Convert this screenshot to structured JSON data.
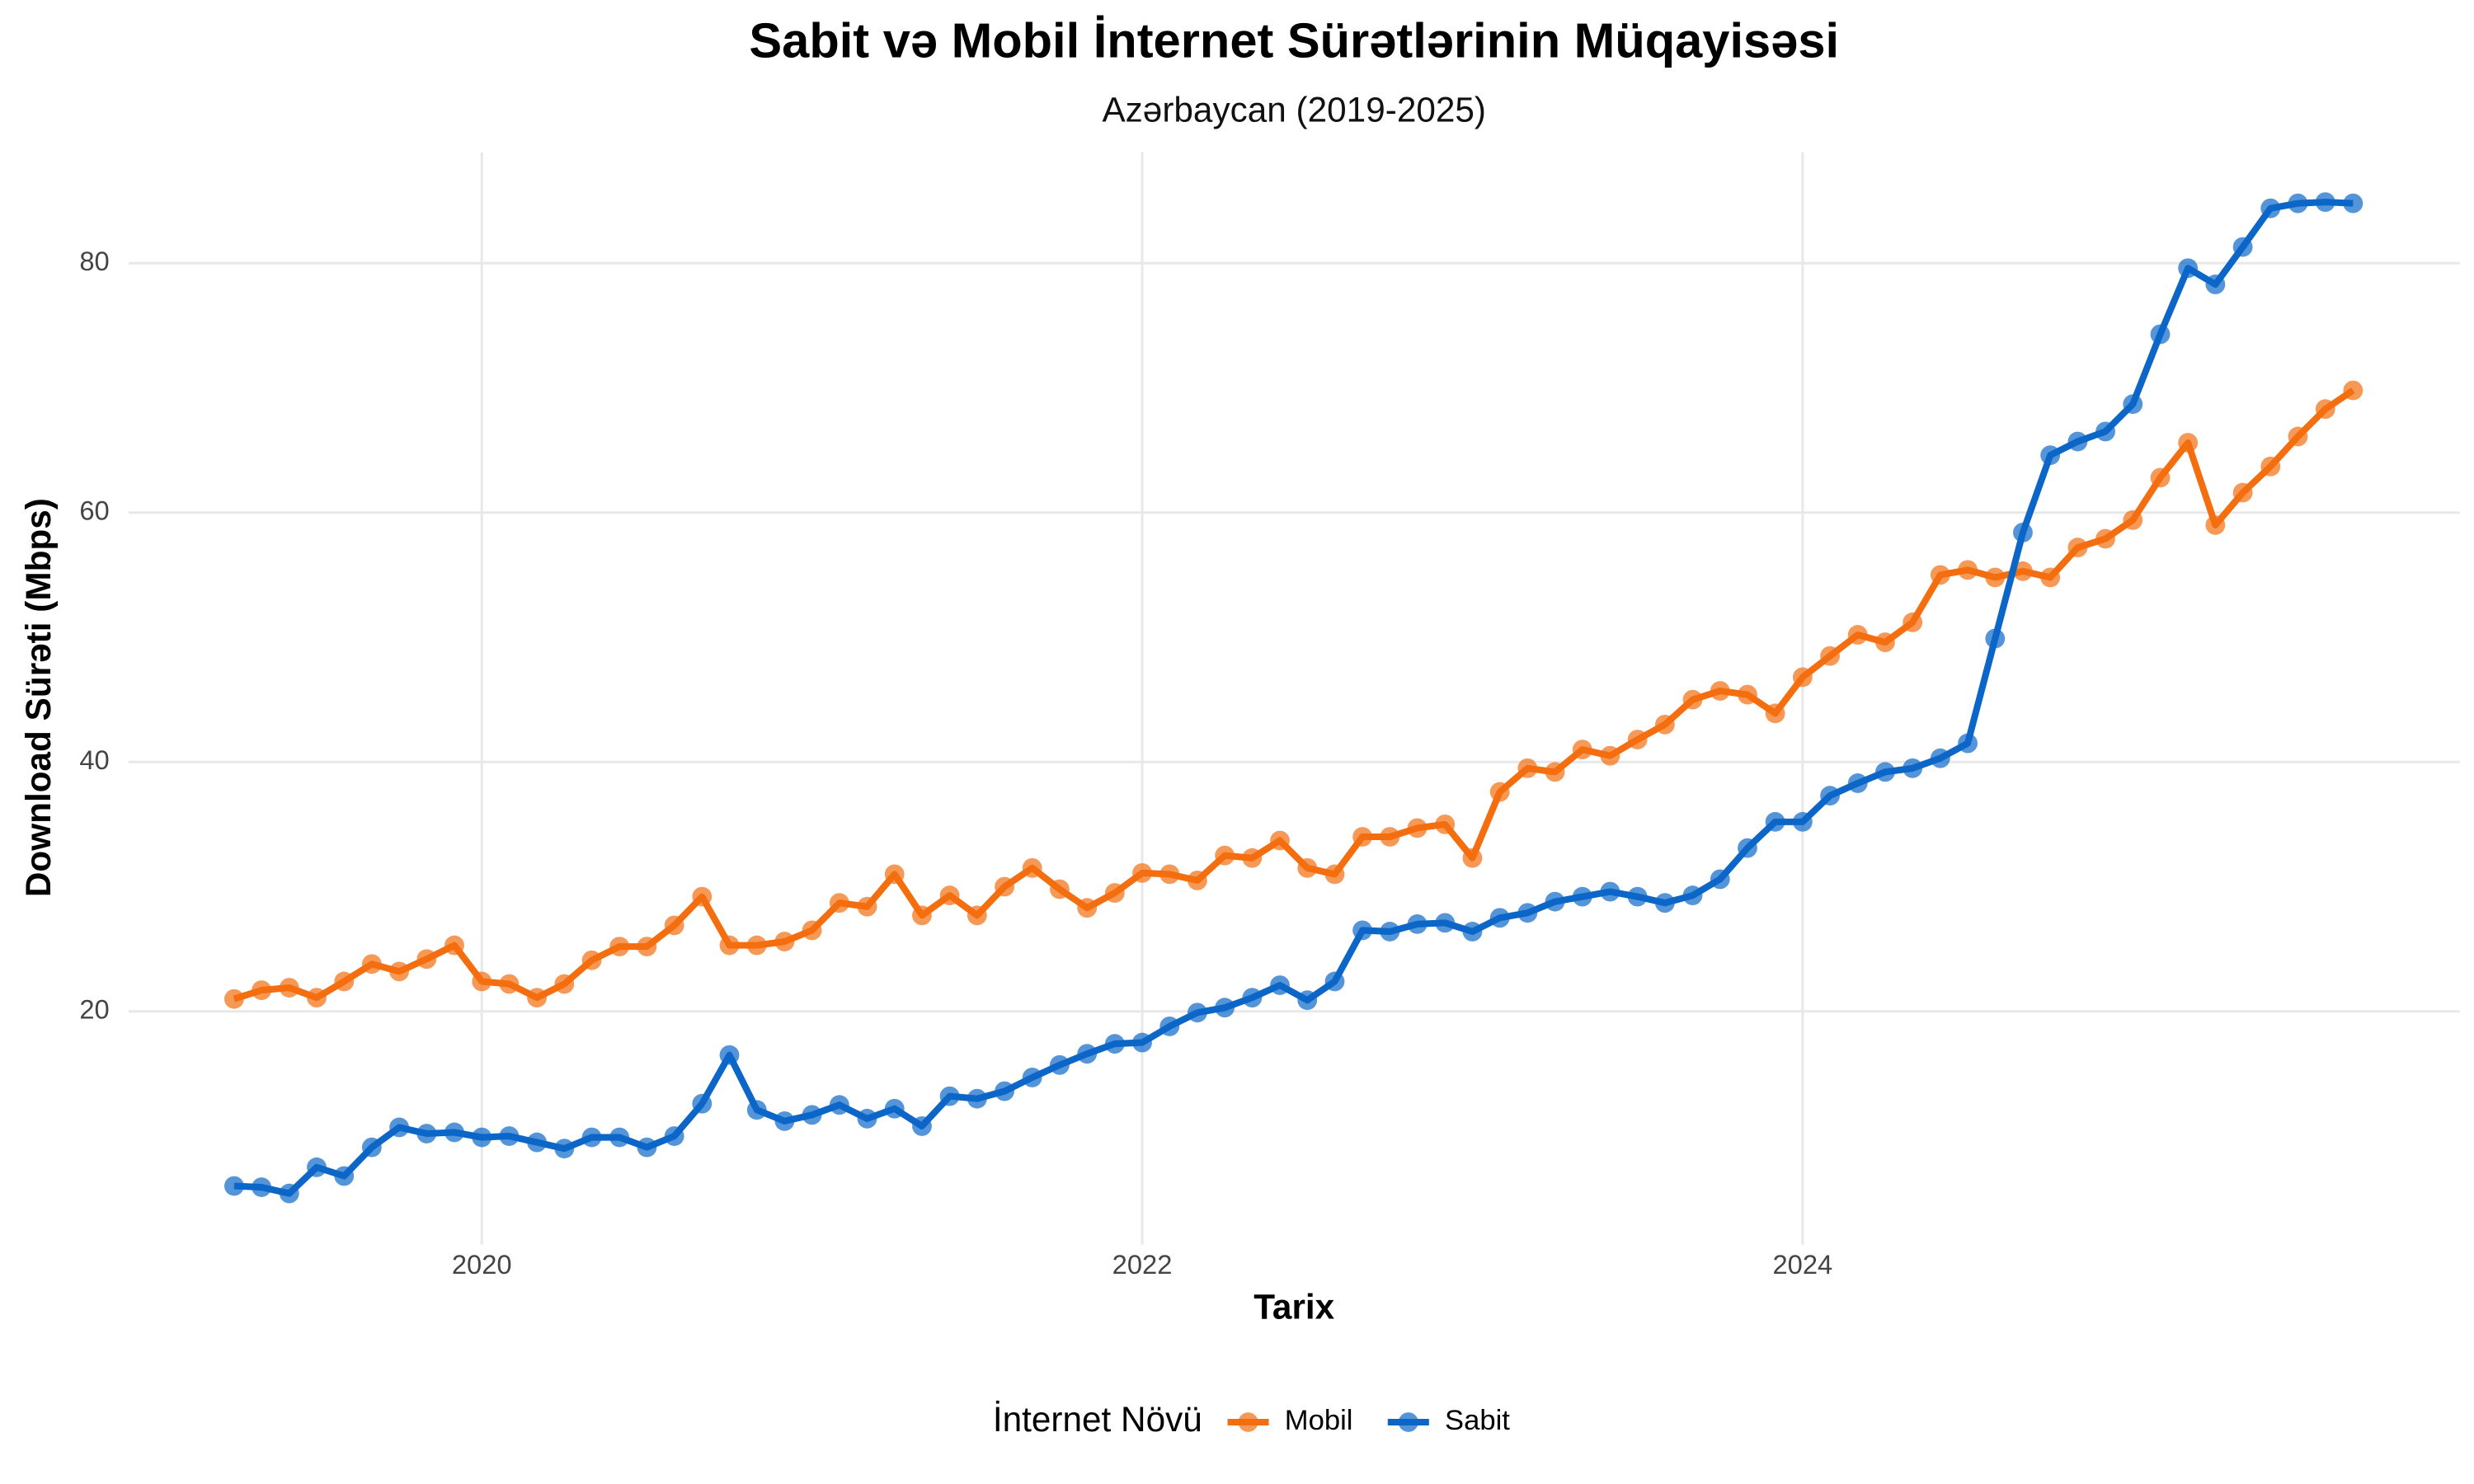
{
  "chart_data": {
    "type": "line",
    "title": "Sabit və Mobil İnternet Sürətlərinin Müqayisəsi",
    "subtitle": "Azərbaycan (2019-2025)",
    "x_label": "Tarix",
    "y_label": "Download Sürəti (Mbps)",
    "legend_title": "İnternet Növü",
    "legend": "bottom",
    "grid": true,
    "x": [
      2019.25,
      2019.333,
      2019.417,
      2019.5,
      2019.583,
      2019.667,
      2019.75,
      2019.833,
      2019.917,
      2020.0,
      2020.083,
      2020.167,
      2020.25,
      2020.333,
      2020.417,
      2020.5,
      2020.583,
      2020.667,
      2020.75,
      2020.833,
      2020.917,
      2021.0,
      2021.083,
      2021.167,
      2021.25,
      2021.333,
      2021.417,
      2021.5,
      2021.583,
      2021.667,
      2021.75,
      2021.833,
      2021.917,
      2022.0,
      2022.083,
      2022.167,
      2022.25,
      2022.333,
      2022.417,
      2022.5,
      2022.583,
      2022.667,
      2022.75,
      2022.833,
      2022.917,
      2023.0,
      2023.083,
      2023.167,
      2023.25,
      2023.333,
      2023.417,
      2023.5,
      2023.583,
      2023.667,
      2023.75,
      2023.833,
      2023.917,
      2024.0,
      2024.083,
      2024.167,
      2024.25,
      2024.333,
      2024.417,
      2024.5,
      2024.583,
      2024.667,
      2024.75,
      2024.833,
      2024.917,
      2025.0,
      2025.083,
      2025.167,
      2025.25,
      2025.333,
      2025.417,
      2025.5,
      2025.583,
      2025.667
    ],
    "series": [
      {
        "name": "Mobil",
        "color": "#f46d0e",
        "values": [
          21.0,
          21.7,
          21.9,
          21.1,
          22.4,
          23.8,
          23.2,
          24.2,
          25.3,
          22.4,
          22.2,
          21.1,
          22.2,
          24.1,
          25.2,
          25.2,
          26.9,
          29.2,
          25.3,
          25.3,
          25.6,
          26.5,
          28.7,
          28.4,
          31.0,
          27.7,
          29.3,
          27.7,
          30.0,
          31.5,
          29.8,
          28.3,
          29.5,
          31.1,
          31.0,
          30.5,
          32.5,
          32.3,
          33.7,
          31.5,
          31.0,
          34.0,
          34.0,
          34.7,
          35.0,
          32.3,
          37.6,
          39.5,
          39.2,
          41.0,
          40.5,
          41.8,
          43.0,
          45.0,
          45.7,
          45.4,
          43.9,
          46.8,
          48.5,
          50.2,
          49.6,
          51.2,
          55.0,
          55.4,
          54.8,
          55.3,
          54.8,
          57.2,
          57.9,
          59.4,
          62.8,
          65.6,
          59.0,
          61.6,
          63.7,
          66.1,
          68.3,
          69.8
        ]
      },
      {
        "name": "Sabit",
        "color": "#0b66c8",
        "values": [
          6.0,
          5.9,
          5.4,
          7.5,
          6.8,
          9.1,
          10.7,
          10.2,
          10.3,
          9.9,
          10.0,
          9.5,
          9.0,
          9.9,
          9.9,
          9.1,
          10.0,
          12.6,
          16.5,
          12.1,
          11.2,
          11.7,
          12.5,
          11.4,
          12.2,
          10.8,
          13.2,
          13.0,
          13.6,
          14.7,
          15.7,
          16.6,
          17.4,
          17.5,
          18.8,
          19.9,
          20.3,
          21.1,
          22.1,
          20.9,
          22.4,
          26.5,
          26.4,
          27.0,
          27.1,
          26.4,
          27.5,
          27.9,
          28.8,
          29.2,
          29.6,
          29.2,
          28.7,
          29.3,
          30.6,
          33.1,
          35.2,
          35.2,
          37.3,
          38.3,
          39.2,
          39.5,
          40.3,
          41.5,
          49.9,
          58.4,
          64.6,
          65.7,
          66.5,
          68.7,
          74.3,
          79.6,
          78.3,
          81.3,
          84.4,
          84.8,
          84.9,
          84.8
        ]
      }
    ],
    "xlim": [
      2018.93,
      2025.99
    ],
    "xticks": [
      2020,
      2022,
      2024
    ],
    "ylim": [
      1.3,
      88.9
    ],
    "yticks": [
      20,
      40,
      60,
      80
    ]
  }
}
